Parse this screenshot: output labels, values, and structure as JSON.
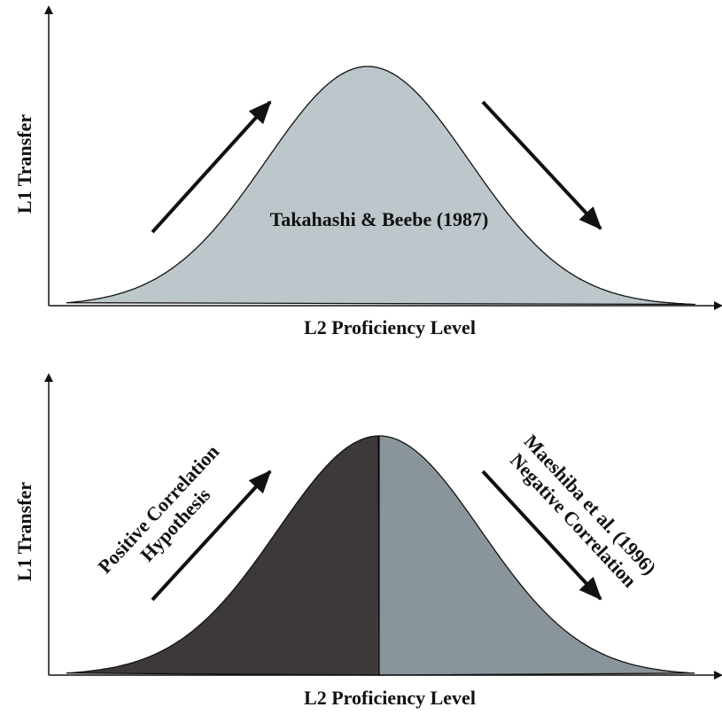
{
  "panels": [
    {
      "y_label": "L1 Transfer",
      "x_label": "L2 Proficiency Level",
      "curve_label": "Takahashi & Beebe (1987)"
    },
    {
      "y_label": "L1 Transfer",
      "x_label": "L2 Proficiency Level",
      "left_label": [
        "Positive Correlation",
        "Hypothesis"
      ],
      "right_label": [
        "Maeshiba et al. (1996)",
        "Negative Correlation"
      ]
    }
  ]
}
